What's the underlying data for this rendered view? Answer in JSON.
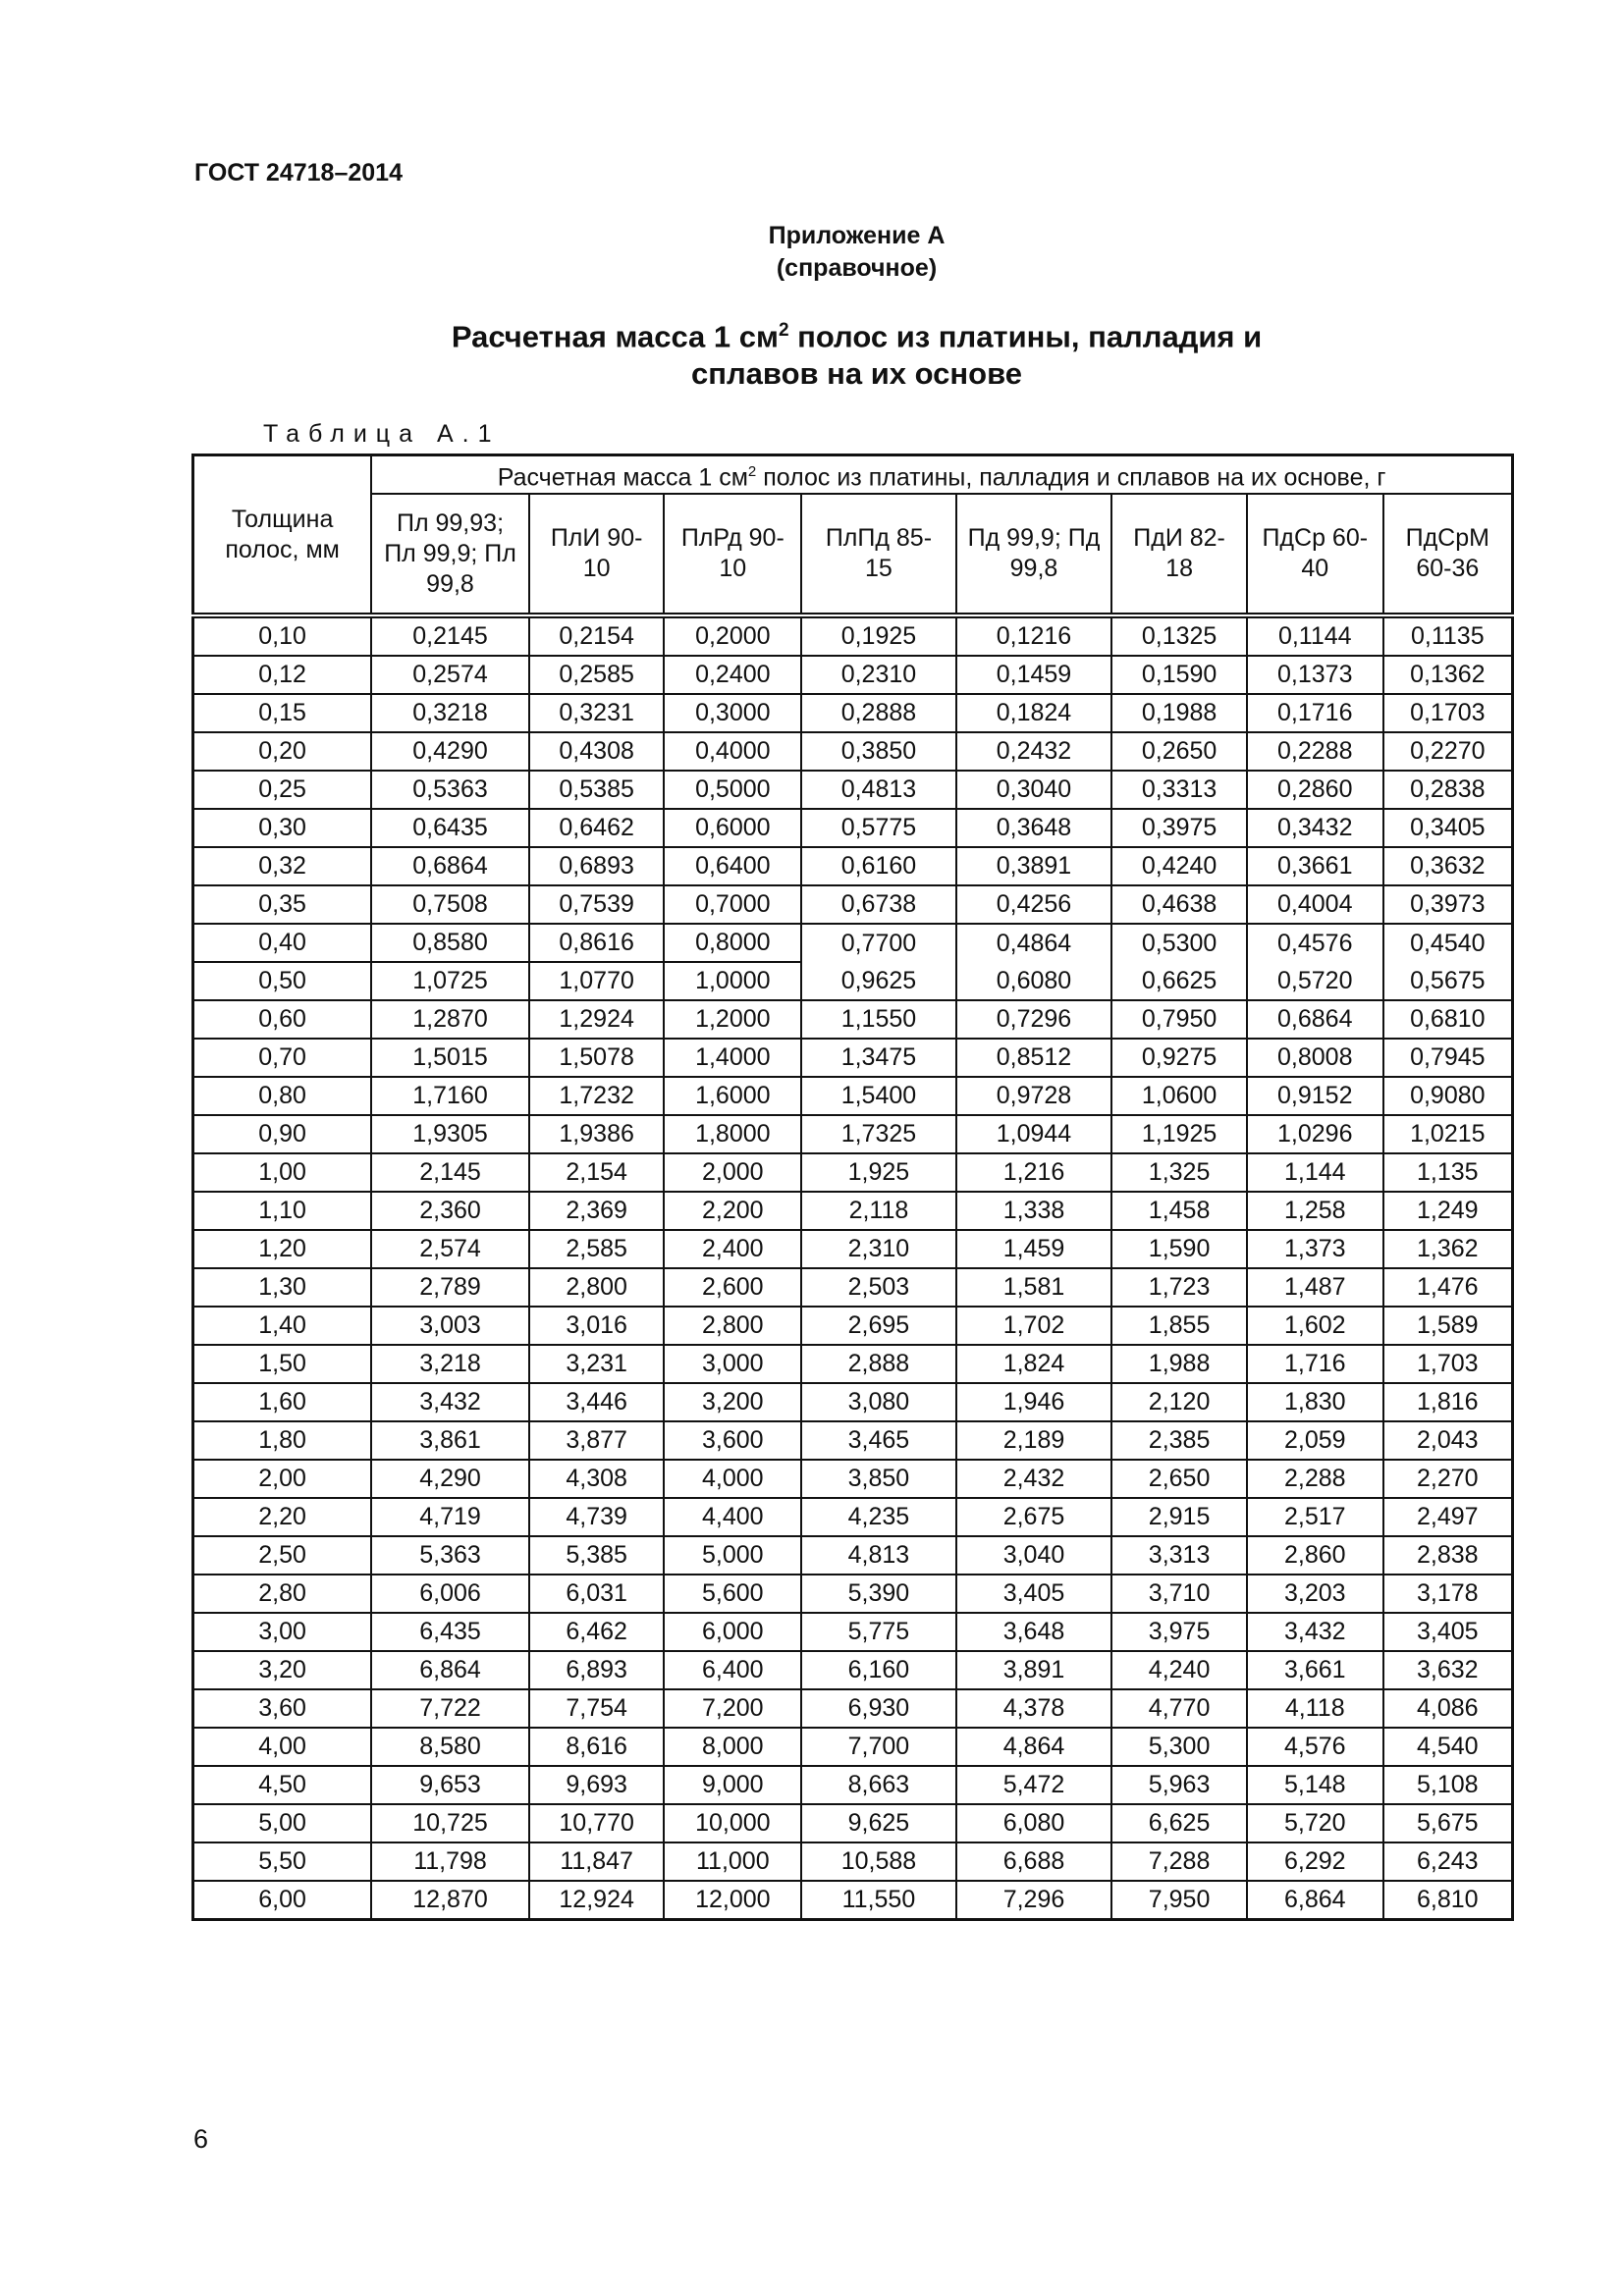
{
  "document": {
    "standard": "ГОСТ 24718–2014",
    "appendix": "Приложение А",
    "appendix_type": "(справочное)",
    "title_part1": "Расчетная масса 1 см",
    "title_sup": "2",
    "title_part2": " полос из платины, палладия и",
    "title_line2": "сплавов на их основе",
    "table_label": "Таблица А.1",
    "page_number": "6"
  },
  "table": {
    "row_header": "Толщина полос, мм",
    "group_header_part1": "Расчетная масса 1 см",
    "group_header_sup": "2",
    "group_header_part2": " полос из платины, палладия и сплавов на их основе, г",
    "columns": [
      "Пл 99,93; Пл 99,9; Пл 99,8",
      "ПлИ 90-10",
      "ПлРд 90-10",
      "ПлПд 85-15",
      "Пд 99,9; Пд 99,8",
      "ПдИ 82-18",
      "ПдСр 60-40",
      "ПдСрМ 60-36"
    ],
    "rows": [
      [
        "0,10",
        "0,2145",
        "0,2154",
        "0,2000",
        "0,1925",
        "0,1216",
        "0,1325",
        "0,1144",
        "0,1135"
      ],
      [
        "0,12",
        "0,2574",
        "0,2585",
        "0,2400",
        "0,2310",
        "0,1459",
        "0,1590",
        "0,1373",
        "0,1362"
      ],
      [
        "0,15",
        "0,3218",
        "0,3231",
        "0,3000",
        "0,2888",
        "0,1824",
        "0,1988",
        "0,1716",
        "0,1703"
      ],
      [
        "0,20",
        "0,4290",
        "0,4308",
        "0,4000",
        "0,3850",
        "0,2432",
        "0,2650",
        "0,2288",
        "0,2270"
      ],
      [
        "0,25",
        "0,5363",
        "0,5385",
        "0,5000",
        "0,4813",
        "0,3040",
        "0,3313",
        "0,2860",
        "0,2838"
      ],
      [
        "0,30",
        "0,6435",
        "0,6462",
        "0,6000",
        "0,5775",
        "0,3648",
        "0,3975",
        "0,3432",
        "0,3405"
      ],
      [
        "0,32",
        "0,6864",
        "0,6893",
        "0,6400",
        "0,6160",
        "0,3891",
        "0,4240",
        "0,3661",
        "0,3632"
      ],
      [
        "0,35",
        "0,7508",
        "0,7539",
        "0,7000",
        "0,6738",
        "0,4256",
        "0,4638",
        "0,4004",
        "0,3973"
      ],
      [
        "0,40",
        "0,8580",
        "0,8616",
        "0,8000",
        "0,7700",
        "0,4864",
        "0,5300",
        "0,4576",
        "0,4540"
      ],
      [
        "0,50",
        "1,0725",
        "1,0770",
        "1,0000",
        "0,9625",
        "0,6080",
        "0,6625",
        "0,5720",
        "0,5675"
      ],
      [
        "0,60",
        "1,2870",
        "1,2924",
        "1,2000",
        "1,1550",
        "0,7296",
        "0,7950",
        "0,6864",
        "0,6810"
      ],
      [
        "0,70",
        "1,5015",
        "1,5078",
        "1,4000",
        "1,3475",
        "0,8512",
        "0,9275",
        "0,8008",
        "0,7945"
      ],
      [
        "0,80",
        "1,7160",
        "1,7232",
        "1,6000",
        "1,5400",
        "0,9728",
        "1,0600",
        "0,9152",
        "0,9080"
      ],
      [
        "0,90",
        "1,9305",
        "1,9386",
        "1,8000",
        "1,7325",
        "1,0944",
        "1,1925",
        "1,0296",
        "1,0215"
      ],
      [
        "1,00",
        "2,145",
        "2,154",
        "2,000",
        "1,925",
        "1,216",
        "1,325",
        "1,144",
        "1,135"
      ],
      [
        "1,10",
        "2,360",
        "2,369",
        "2,200",
        "2,118",
        "1,338",
        "1,458",
        "1,258",
        "1,249"
      ],
      [
        "1,20",
        "2,574",
        "2,585",
        "2,400",
        "2,310",
        "1,459",
        "1,590",
        "1,373",
        "1,362"
      ],
      [
        "1,30",
        "2,789",
        "2,800",
        "2,600",
        "2,503",
        "1,581",
        "1,723",
        "1,487",
        "1,476"
      ],
      [
        "1,40",
        "3,003",
        "3,016",
        "2,800",
        "2,695",
        "1,702",
        "1,855",
        "1,602",
        "1,589"
      ],
      [
        "1,50",
        "3,218",
        "3,231",
        "3,000",
        "2,888",
        "1,824",
        "1,988",
        "1,716",
        "1,703"
      ],
      [
        "1,60",
        "3,432",
        "3,446",
        "3,200",
        "3,080",
        "1,946",
        "2,120",
        "1,830",
        "1,816"
      ],
      [
        "1,80",
        "3,861",
        "3,877",
        "3,600",
        "3,465",
        "2,189",
        "2,385",
        "2,059",
        "2,043"
      ],
      [
        "2,00",
        "4,290",
        "4,308",
        "4,000",
        "3,850",
        "2,432",
        "2,650",
        "2,288",
        "2,270"
      ],
      [
        "2,20",
        "4,719",
        "4,739",
        "4,400",
        "4,235",
        "2,675",
        "2,915",
        "2,517",
        "2,497"
      ],
      [
        "2,50",
        "5,363",
        "5,385",
        "5,000",
        "4,813",
        "3,040",
        "3,313",
        "2,860",
        "2,838"
      ],
      [
        "2,80",
        "6,006",
        "6,031",
        "5,600",
        "5,390",
        "3,405",
        "3,710",
        "3,203",
        "3,178"
      ],
      [
        "3,00",
        "6,435",
        "6,462",
        "6,000",
        "5,775",
        "3,648",
        "3,975",
        "3,432",
        "3,405"
      ],
      [
        "3,20",
        "6,864",
        "6,893",
        "6,400",
        "6,160",
        "3,891",
        "4,240",
        "3,661",
        "3,632"
      ],
      [
        "3,60",
        "7,722",
        "7,754",
        "7,200",
        "6,930",
        "4,378",
        "4,770",
        "4,118",
        "4,086"
      ],
      [
        "4,00",
        "8,580",
        "8,616",
        "8,000",
        "7,700",
        "4,864",
        "5,300",
        "4,576",
        "4,540"
      ],
      [
        "4,50",
        "9,653",
        "9,693",
        "9,000",
        "8,663",
        "5,472",
        "5,963",
        "5,148",
        "5,108"
      ],
      [
        "5,00",
        "10,725",
        "10,770",
        "10,000",
        "9,625",
        "6,080",
        "6,625",
        "5,720",
        "5,675"
      ],
      [
        "5,50",
        "11,798",
        "11,847",
        "11,000",
        "10,588",
        "6,688",
        "7,288",
        "6,292",
        "6,243"
      ],
      [
        "6,00",
        "12,870",
        "12,924",
        "12,000",
        "11,550",
        "7,296",
        "7,950",
        "6,864",
        "6,810"
      ]
    ]
  }
}
